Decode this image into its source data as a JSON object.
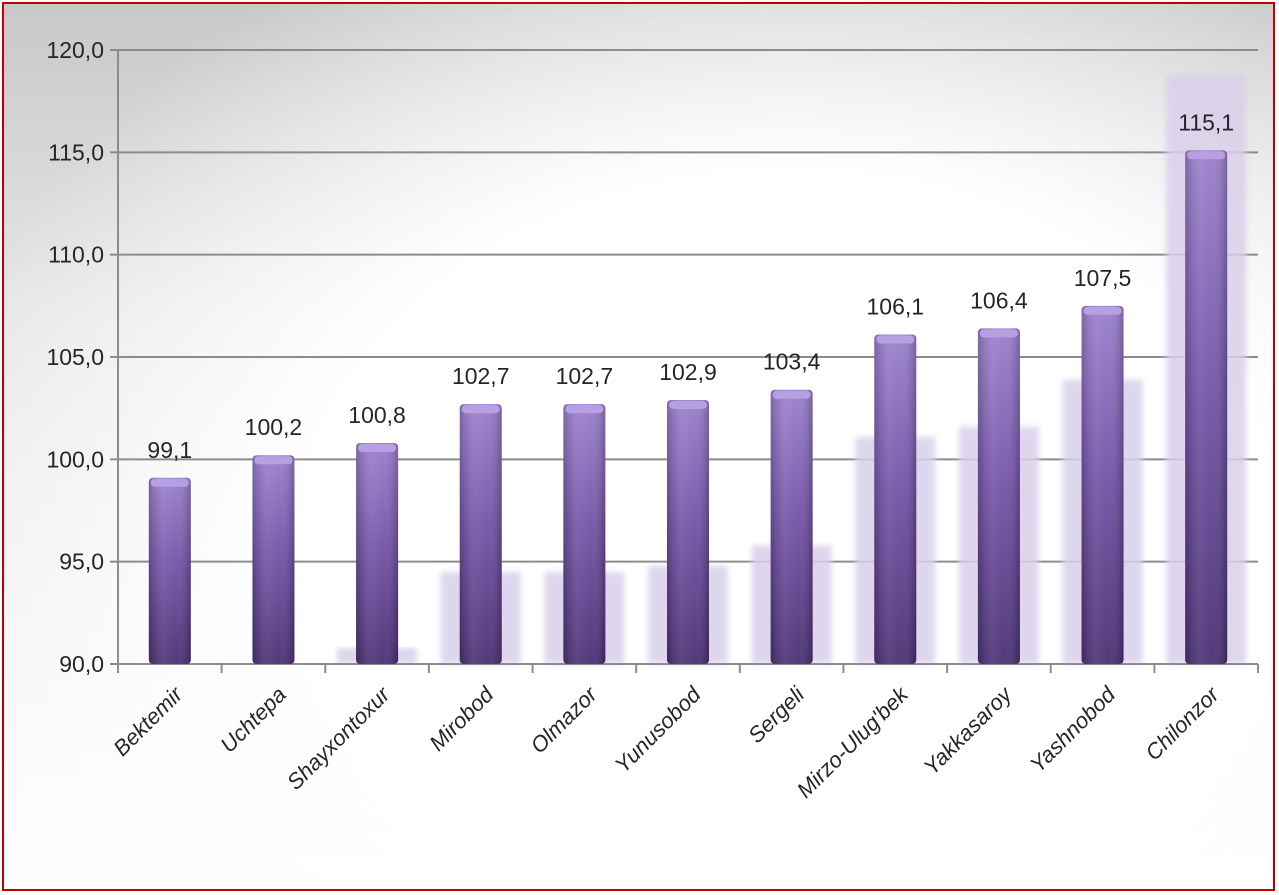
{
  "chart_data": {
    "type": "bar",
    "title": "",
    "xlabel": "",
    "ylabel": "",
    "categories": [
      "Bektemir",
      "Uchtepa",
      "Shayxontoxur",
      "Mirobod",
      "Olmazor",
      "Yunusobod",
      "Sergeli",
      "Mirzo-Ulug'bek",
      "Yakkasaroy",
      "Yashnobod",
      "Chilonzor"
    ],
    "values": [
      99.1,
      100.2,
      100.8,
      102.7,
      102.7,
      102.9,
      103.4,
      106.1,
      106.4,
      107.5,
      115.1
    ],
    "value_labels": [
      "99,1",
      "100,2",
      "100,8",
      "102,7",
      "102,7",
      "102,9",
      "103,4",
      "106,1",
      "106,4",
      "107,5",
      "115,1"
    ],
    "shadow_values": [
      90.0,
      90.0,
      90.8,
      94.5,
      94.5,
      94.8,
      95.8,
      101.1,
      101.6,
      103.9,
      118.8
    ],
    "ylim": [
      90,
      120
    ],
    "yticks": [
      90,
      95,
      100,
      105,
      110,
      115,
      120
    ],
    "ytick_labels": [
      "90,0",
      "95,0",
      "100,0",
      "105,0",
      "110,0",
      "115,0",
      "120,0"
    ],
    "grid": true,
    "legend": "none",
    "colors": {
      "bar_top": "#9a7fcc",
      "bar_mid": "#7454a8",
      "bar_bottom": "#4a2f73",
      "bar_cap": "#b7a0e2",
      "shadow": "#d9d0ea",
      "grid": "#8c8c8c",
      "axis": "#8c8c8c",
      "frame_border": "#c00000"
    }
  }
}
